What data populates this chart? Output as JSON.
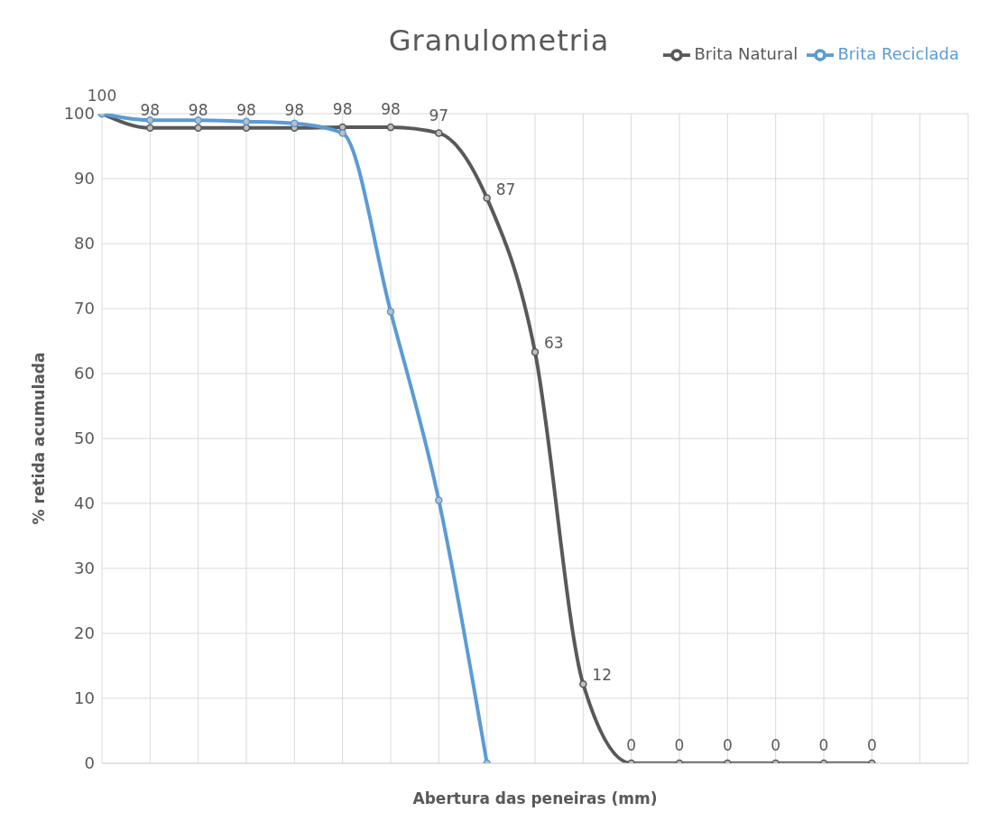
{
  "chart_data": {
    "type": "line",
    "title": "Granulometria",
    "xlabel": "Abertura das peneiras (mm)",
    "ylabel": "% retida acumulada",
    "categories": [
      null,
      null,
      null,
      null,
      null,
      null,
      null,
      null,
      null,
      null,
      null,
      null,
      null,
      null,
      null,
      null,
      null,
      null,
      null
    ],
    "series": [
      {
        "name": "Brita Natural",
        "color": "#595959",
        "values": [
          100,
          97.8,
          97.8,
          97.8,
          97.8,
          97.9,
          97.9,
          97,
          87,
          63.3,
          12.2,
          0,
          0,
          0,
          0,
          0,
          0,
          null,
          null
        ],
        "value_labels": [
          "100",
          "98",
          "98",
          "98",
          "98",
          "98",
          "98",
          "97",
          "87",
          "63",
          "12",
          "0",
          "0",
          "0",
          "0",
          "0",
          "0",
          null,
          null
        ]
      },
      {
        "name": "Brita Reciclada",
        "color": "#5b9bd5",
        "values": [
          100,
          99,
          99,
          98.8,
          98.5,
          97,
          69.5,
          40.5,
          0,
          null,
          null,
          null,
          null,
          null,
          null,
          null,
          null,
          null,
          null
        ]
      }
    ],
    "ylim": [
      0,
      100
    ],
    "yticks": [
      0,
      10,
      20,
      30,
      40,
      50,
      60,
      70,
      80,
      90,
      100
    ],
    "grid": true,
    "legend": "top right",
    "marker": "circle",
    "line_style": "solid"
  }
}
